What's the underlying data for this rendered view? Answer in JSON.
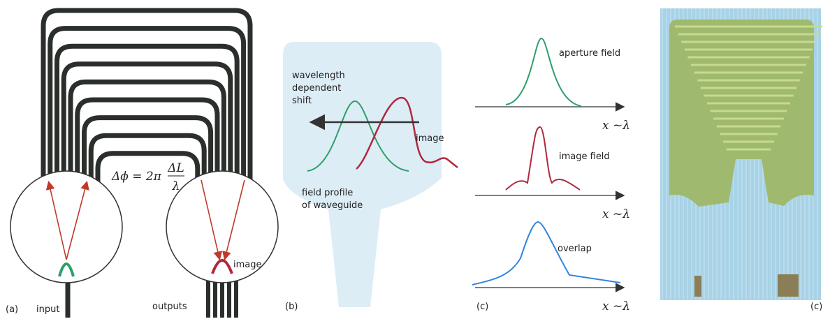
{
  "panel_a": {
    "label": "(a)",
    "input": "input",
    "outputs": "outputs",
    "formula": {
      "lhs": "Δϕ = 2π",
      "numerator": "ΔL",
      "denominator": "λ"
    },
    "image": "image"
  },
  "panel_b": {
    "label": "(b)",
    "shift": [
      "wavelength",
      "dependent",
      "shift"
    ],
    "image": "image",
    "field_profile": [
      "field profile",
      "of waveguide"
    ]
  },
  "panel_c": {
    "label": "(c)",
    "plots": [
      {
        "name": "aperture field",
        "axis": "x ~λ"
      },
      {
        "name": "image field",
        "axis": "x ~λ"
      },
      {
        "name": "overlap",
        "axis": "x ~λ"
      }
    ]
  },
  "panel_d": {
    "label": "(c)"
  }
}
